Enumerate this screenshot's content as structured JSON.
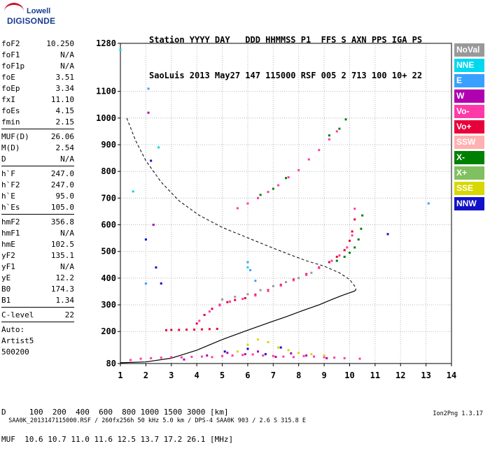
{
  "logo": {
    "line1": "Lowell",
    "line2": "DIGISONDE"
  },
  "header": {
    "row1": "Station YYYY DAY   DDD HHMMSS P1  FFS S AXN PPS IGA PS",
    "row2": "SaoLuis 2013 May27 147 115000 RSF 005 2 713 100 10+ 22"
  },
  "params": {
    "group1": [
      {
        "label": "foF2",
        "value": "10.250"
      },
      {
        "label": "foF1",
        "value": "N/A"
      },
      {
        "label": "foF1p",
        "value": "N/A"
      },
      {
        "label": "foE",
        "value": "3.51"
      },
      {
        "label": "foEp",
        "value": "3.34"
      },
      {
        "label": "fxI",
        "value": "11.10"
      },
      {
        "label": "foEs",
        "value": "4.15"
      },
      {
        "label": "fmin",
        "value": "2.15"
      }
    ],
    "group2": [
      {
        "label": "MUF(D)",
        "value": "26.06"
      },
      {
        "label": "M(D)",
        "value": "2.54"
      },
      {
        "label": "D",
        "value": "N/A"
      }
    ],
    "group3": [
      {
        "label": "h`F",
        "value": "247.0"
      },
      {
        "label": "h`F2",
        "value": "247.0"
      },
      {
        "label": "h`E",
        "value": "95.0"
      },
      {
        "label": "h`Es",
        "value": "105.0"
      }
    ],
    "group4": [
      {
        "label": "hmF2",
        "value": "356.8"
      },
      {
        "label": "hmF1",
        "value": "N/A"
      },
      {
        "label": "hmE",
        "value": "102.5"
      },
      {
        "label": "yF2",
        "value": "135.1"
      },
      {
        "label": "yF1",
        "value": "N/A"
      },
      {
        "label": "yE",
        "value": "12.2"
      },
      {
        "label": "B0",
        "value": "174.3"
      },
      {
        "label": "B1",
        "value": "1.34"
      }
    ],
    "group5": [
      {
        "label": "C-level",
        "value": "22"
      }
    ],
    "auto": [
      "Auto:",
      "Artist5",
      "500200"
    ]
  },
  "legend": [
    {
      "label": "NoVal",
      "color": "#999999"
    },
    {
      "label": "NNE",
      "color": "#00d8f0"
    },
    {
      "label": "E",
      "color": "#3aa0ff"
    },
    {
      "label": "W",
      "color": "#b000b0"
    },
    {
      "label": "Vo-",
      "color": "#ff3aa8"
    },
    {
      "label": "Vo+",
      "color": "#e8003a"
    },
    {
      "label": "SSW",
      "color": "#ffb0b0"
    },
    {
      "label": "X-",
      "color": "#008000"
    },
    {
      "label": "X+",
      "color": "#80c060"
    },
    {
      "label": "SSE",
      "color": "#d8d800"
    },
    {
      "label": "NNW",
      "color": "#1010c8"
    }
  ],
  "bottom": {
    "row1": "D     100  200  400  600  800 1000 1500 3000 [km]",
    "row2": "MUF  10.6 10.7 11.0 11.6 12.5 13.7 17.2 26.1 [MHz]"
  },
  "footer": {
    "left": "SAA0K_2013147115000.RSF / 260fx256h 50 kHz 5.0 km / DPS-4 SAA0K 903 / 2.6 S 315.8 E",
    "right": "Ion2Png 1.3.17"
  },
  "chart_data": {
    "type": "scatter",
    "xlim": [
      1,
      14
    ],
    "ylim": [
      80,
      1280
    ],
    "x_ticks": [
      1,
      2,
      3,
      4,
      5,
      6,
      7,
      8,
      9,
      10,
      11,
      12,
      13,
      14
    ],
    "y_ticks": [
      80,
      200,
      300,
      400,
      500,
      600,
      700,
      800,
      900,
      1000,
      1100,
      1280
    ],
    "grid": true,
    "series": [
      {
        "name": "Vo+",
        "color": "#e8003a",
        "x": [
          4.0,
          4.3,
          4.6,
          4.9,
          5.2,
          5.5,
          5.9,
          6.3,
          6.8,
          7.3,
          7.8,
          8.3,
          8.8,
          9.2,
          9.5,
          9.8,
          10.0,
          10.1,
          10.2
        ],
        "y": [
          230,
          262,
          285,
          300,
          310,
          318,
          325,
          338,
          355,
          375,
          395,
          415,
          440,
          460,
          480,
          505,
          540,
          575,
          620
        ]
      },
      {
        "name": "Vo-",
        "color": "#ff3aa8",
        "x": [
          4.1,
          4.5,
          4.9,
          5.3,
          5.8,
          6.3,
          6.8,
          7.3,
          7.8,
          8.3,
          8.8,
          9.3,
          9.6,
          9.9,
          10.1,
          10.2
        ],
        "y": [
          240,
          275,
          298,
          312,
          322,
          335,
          352,
          372,
          392,
          412,
          438,
          465,
          485,
          515,
          560,
          660
        ]
      },
      {
        "name": "X-",
        "color": "#008000",
        "x": [
          9.5,
          9.8,
          10.0,
          10.2,
          10.35,
          10.45,
          10.5
        ],
        "y": [
          465,
          480,
          495,
          515,
          545,
          585,
          635
        ]
      },
      {
        "name": "NoVal",
        "color": "#999999",
        "x": [
          5.0,
          5.5,
          6.0,
          6.5,
          7.0,
          7.5,
          8.0,
          8.5
        ],
        "y": [
          320,
          330,
          340,
          355,
          370,
          385,
          400,
          420
        ]
      },
      {
        "name": "Vo-",
        "color": "#ff3aa8",
        "x": [
          5.6,
          6.0,
          6.4,
          6.8,
          7.2,
          7.6,
          8.0,
          8.4,
          8.8,
          9.2,
          9.5
        ],
        "y": [
          662,
          680,
          700,
          723,
          748,
          778,
          805,
          845,
          880,
          920,
          950
        ]
      },
      {
        "name": "X-",
        "color": "#008000",
        "x": [
          6.5,
          7.0,
          7.5,
          9.2,
          9.6,
          9.85
        ],
        "y": [
          712,
          735,
          775,
          935,
          960,
          995
        ]
      },
      {
        "name": "Vo+",
        "color": "#e8003a",
        "x": [
          2.8,
          3.0,
          3.3,
          3.6,
          3.9,
          4.2,
          4.5,
          4.8
        ],
        "y": [
          205,
          206,
          206,
          207,
          207,
          208,
          209,
          210
        ]
      },
      {
        "name": "Vo-",
        "color": "#ff3aa8",
        "x": [
          1.4,
          1.8,
          2.2,
          2.6,
          3.0,
          3.4,
          3.8,
          4.2,
          4.6,
          5.0,
          5.4,
          5.8,
          6.2,
          6.6,
          7.0,
          7.4,
          7.8,
          8.2,
          8.6,
          9.0,
          9.4,
          9.8,
          10.4
        ],
        "y": [
          93,
          98,
          100,
          102,
          104,
          103,
          105,
          106,
          104,
          108,
          110,
          112,
          114,
          110,
          108,
          106,
          104,
          108,
          106,
          104,
          102,
          100,
          98
        ]
      },
      {
        "name": "W",
        "color": "#b000b0",
        "x": [
          2.1,
          2.3,
          3.5,
          4.4,
          5.2,
          5.9,
          6.4,
          7.1,
          7.7,
          8.3,
          9.1
        ],
        "y": [
          1020,
          600,
          95,
          110,
          120,
          115,
          125,
          105,
          118,
          110,
          100
        ]
      },
      {
        "name": "SSE",
        "color": "#d8d800",
        "x": [
          5.6,
          6.0,
          6.4,
          6.8,
          7.2,
          7.6,
          8.0,
          8.5,
          9.0
        ],
        "y": [
          125,
          150,
          170,
          160,
          140,
          130,
          120,
          115,
          110
        ]
      },
      {
        "name": "NNW",
        "color": "#1010c8",
        "x": [
          2.0,
          2.2,
          2.4,
          2.6,
          5.1,
          6.0,
          6.7,
          7.3,
          11.5
        ],
        "y": [
          545,
          840,
          440,
          380,
          125,
          135,
          115,
          140,
          565
        ]
      },
      {
        "name": "E",
        "color": "#3aa0ff",
        "x": [
          6.0,
          6.1,
          6.3,
          2.1,
          2.0,
          13.1
        ],
        "y": [
          460,
          430,
          390,
          1110,
          380,
          680
        ]
      },
      {
        "name": "NNE",
        "color": "#00d8f0",
        "x": [
          1.0,
          1.5,
          2.5,
          6.0
        ],
        "y": [
          1255,
          725,
          890,
          440
        ]
      }
    ],
    "profile_curve": {
      "x": [
        1.0,
        2.0,
        3.0,
        4.0,
        5.0,
        6.0,
        6.8,
        7.5,
        8.2,
        8.8,
        9.3,
        9.7,
        10.0,
        10.2,
        10.25
      ],
      "y": [
        83,
        86,
        100,
        130,
        170,
        205,
        232,
        255,
        280,
        300,
        320,
        335,
        345,
        352,
        357
      ]
    },
    "dashed_curve": {
      "x": [
        1.25,
        1.6,
        2.0,
        2.6,
        3.3,
        4.1,
        5.0,
        5.9,
        6.8,
        7.6,
        8.3,
        9.0,
        9.6,
        10.0,
        10.2,
        10.25
      ],
      "y": [
        1000,
        915,
        840,
        760,
        690,
        635,
        590,
        555,
        520,
        490,
        465,
        445,
        420,
        395,
        370,
        357
      ]
    }
  }
}
